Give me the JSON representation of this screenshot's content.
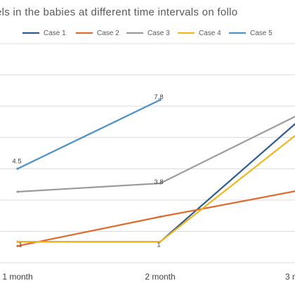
{
  "chart_data": {
    "type": "line",
    "title": "els in the babies at different time intervals  on follo",
    "categories": [
      "1 month",
      "2 month",
      "3 m"
    ],
    "series": [
      {
        "name": "Case 1",
        "color": "#2e5c8f",
        "values": [
          1,
          1,
          7
        ]
      },
      {
        "name": "Case 2",
        "color": "#e06a2e",
        "values": [
          0.8,
          2.2,
          3.5
        ]
      },
      {
        "name": "Case 3",
        "color": "#9b9b9b",
        "values": [
          3.4,
          3.8,
          7.2
        ]
      },
      {
        "name": "Case 4",
        "color": "#f2b622",
        "values": [
          1,
          1,
          6.4
        ]
      },
      {
        "name": "Case 5",
        "color": "#4d92c6",
        "values": [
          4.5,
          7.8,
          null
        ]
      }
    ],
    "data_labels": [
      {
        "series": "Case 5",
        "category": "1 month",
        "value": "4.5"
      },
      {
        "series": "Case 5",
        "category": "2 month",
        "value": "7.8"
      },
      {
        "series": "Case 3",
        "category": "2 month",
        "value": "3.8"
      },
      {
        "series": "Case 4",
        "category": "1 month",
        "value": "1"
      },
      {
        "series": "Case 4",
        "category": "2 month",
        "value": "1"
      }
    ],
    "ylim": [
      0,
      10.5
    ],
    "grid": true,
    "legend_position": "top"
  }
}
